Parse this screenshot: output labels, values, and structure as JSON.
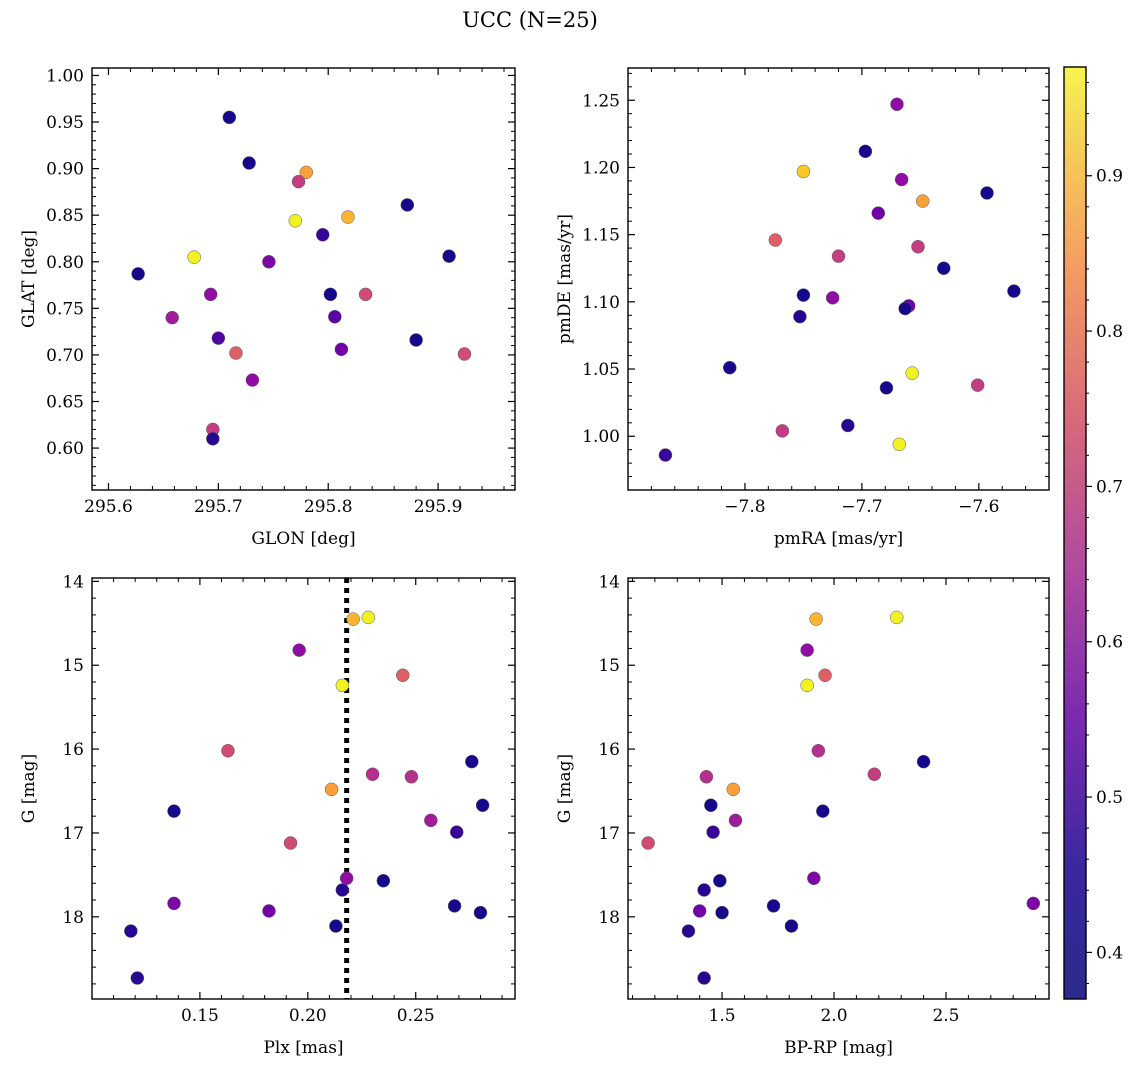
{
  "figure": {
    "title": "UCC (N=25)",
    "colorbar": {
      "colormap": "plasma",
      "range": [
        0.37,
        0.97
      ],
      "ticks": [
        0.4,
        0.5,
        0.6,
        0.7,
        0.8,
        0.9
      ],
      "tick_labels": [
        "0.4",
        "0.5",
        "0.6",
        "0.7",
        "0.8",
        "0.9"
      ]
    }
  },
  "chart_data": [
    {
      "type": "scatter",
      "id": "glon-glat",
      "xlabel": "GLON [deg]",
      "ylabel": "GLAT [deg]",
      "xlim": [
        295.585,
        295.97
      ],
      "ylim": [
        0.555,
        1.008
      ],
      "xticks": [
        295.6,
        295.7,
        295.8,
        295.9
      ],
      "xtick_labels": [
        "295.6",
        "295.7",
        "295.8",
        "295.9"
      ],
      "yticks": [
        0.6,
        0.65,
        0.7,
        0.75,
        0.8,
        0.85,
        0.9,
        0.95,
        1.0
      ],
      "ytick_labels": [
        "0.60",
        "0.65",
        "0.70",
        "0.75",
        "0.80",
        "0.85",
        "0.90",
        "0.95",
        "1.00"
      ],
      "y_inverted": false,
      "points": [
        {
          "x": 295.71,
          "y": 0.955,
          "c": 0.38
        },
        {
          "x": 295.728,
          "y": 0.906,
          "c": 0.38
        },
        {
          "x": 295.78,
          "y": 0.896,
          "c": 0.84
        },
        {
          "x": 295.773,
          "y": 0.886,
          "c": 0.65
        },
        {
          "x": 295.872,
          "y": 0.861,
          "c": 0.38
        },
        {
          "x": 295.818,
          "y": 0.848,
          "c": 0.87
        },
        {
          "x": 295.77,
          "y": 0.844,
          "c": 0.96
        },
        {
          "x": 295.795,
          "y": 0.829,
          "c": 0.42
        },
        {
          "x": 295.91,
          "y": 0.806,
          "c": 0.38
        },
        {
          "x": 295.678,
          "y": 0.805,
          "c": 0.96
        },
        {
          "x": 295.746,
          "y": 0.8,
          "c": 0.52
        },
        {
          "x": 295.627,
          "y": 0.787,
          "c": 0.38
        },
        {
          "x": 295.802,
          "y": 0.765,
          "c": 0.38
        },
        {
          "x": 295.834,
          "y": 0.765,
          "c": 0.68
        },
        {
          "x": 295.693,
          "y": 0.765,
          "c": 0.55
        },
        {
          "x": 295.806,
          "y": 0.741,
          "c": 0.47
        },
        {
          "x": 295.658,
          "y": 0.74,
          "c": 0.58
        },
        {
          "x": 295.7,
          "y": 0.718,
          "c": 0.45
        },
        {
          "x": 295.88,
          "y": 0.716,
          "c": 0.38
        },
        {
          "x": 295.812,
          "y": 0.706,
          "c": 0.5
        },
        {
          "x": 295.716,
          "y": 0.702,
          "c": 0.72
        },
        {
          "x": 295.924,
          "y": 0.701,
          "c": 0.68
        },
        {
          "x": 295.731,
          "y": 0.673,
          "c": 0.55
        },
        {
          "x": 295.695,
          "y": 0.62,
          "c": 0.65
        },
        {
          "x": 295.695,
          "y": 0.61,
          "c": 0.4
        }
      ]
    },
    {
      "type": "scatter",
      "id": "pmra-pmde",
      "xlabel": "pmRA [mas/yr]",
      "ylabel": "pmDE [mas/yr]",
      "xlim": [
        -7.9,
        -7.54
      ],
      "ylim": [
        0.96,
        1.274
      ],
      "xticks": [
        -7.8,
        -7.7,
        -7.6
      ],
      "xtick_labels": [
        "−7.8",
        "−7.7",
        "−7.6"
      ],
      "yticks": [
        1.0,
        1.05,
        1.1,
        1.15,
        1.2,
        1.25
      ],
      "ytick_labels": [
        "1.00",
        "1.05",
        "1.10",
        "1.15",
        "1.20",
        "1.25"
      ],
      "y_inverted": false,
      "points": [
        {
          "x": -7.67,
          "y": 1.247,
          "c": 0.55
        },
        {
          "x": -7.697,
          "y": 1.212,
          "c": 0.38
        },
        {
          "x": -7.75,
          "y": 1.197,
          "c": 0.9
        },
        {
          "x": -7.666,
          "y": 1.191,
          "c": 0.55
        },
        {
          "x": -7.593,
          "y": 1.181,
          "c": 0.38
        },
        {
          "x": -7.648,
          "y": 1.175,
          "c": 0.84
        },
        {
          "x": -7.686,
          "y": 1.166,
          "c": 0.5
        },
        {
          "x": -7.774,
          "y": 1.146,
          "c": 0.72
        },
        {
          "x": -7.652,
          "y": 1.141,
          "c": 0.65
        },
        {
          "x": -7.72,
          "y": 1.134,
          "c": 0.65
        },
        {
          "x": -7.63,
          "y": 1.125,
          "c": 0.38
        },
        {
          "x": -7.57,
          "y": 1.108,
          "c": 0.38
        },
        {
          "x": -7.75,
          "y": 1.105,
          "c": 0.38
        },
        {
          "x": -7.725,
          "y": 1.103,
          "c": 0.55
        },
        {
          "x": -7.66,
          "y": 1.097,
          "c": 0.5
        },
        {
          "x": -7.663,
          "y": 1.095,
          "c": 0.38
        },
        {
          "x": -7.753,
          "y": 1.089,
          "c": 0.4
        },
        {
          "x": -7.813,
          "y": 1.051,
          "c": 0.38
        },
        {
          "x": -7.657,
          "y": 1.047,
          "c": 0.96
        },
        {
          "x": -7.601,
          "y": 1.038,
          "c": 0.65
        },
        {
          "x": -7.679,
          "y": 1.036,
          "c": 0.38
        },
        {
          "x": -7.712,
          "y": 1.008,
          "c": 0.4
        },
        {
          "x": -7.768,
          "y": 1.004,
          "c": 0.65
        },
        {
          "x": -7.668,
          "y": 0.994,
          "c": 0.96
        },
        {
          "x": -7.868,
          "y": 0.986,
          "c": 0.42
        }
      ]
    },
    {
      "type": "scatter",
      "id": "plx-g",
      "xlabel": "Plx [mas]",
      "ylabel": "G [mag]",
      "xlim": [
        0.1,
        0.296
      ],
      "ylim": [
        18.98,
        13.96
      ],
      "xticks": [
        0.15,
        0.2,
        0.25
      ],
      "xtick_labels": [
        "0.15",
        "0.20",
        "0.25"
      ],
      "yticks": [
        14,
        15,
        16,
        17,
        18
      ],
      "ytick_labels": [
        "14",
        "15",
        "16",
        "17",
        "18"
      ],
      "y_inverted": true,
      "reference_line": {
        "axis": "x",
        "value": 0.218,
        "style": "dotted"
      },
      "points": [
        {
          "x": 0.228,
          "y": 14.43,
          "c": 0.96
        },
        {
          "x": 0.221,
          "y": 14.45,
          "c": 0.87
        },
        {
          "x": 0.196,
          "y": 14.82,
          "c": 0.55
        },
        {
          "x": 0.244,
          "y": 15.12,
          "c": 0.72
        },
        {
          "x": 0.216,
          "y": 15.24,
          "c": 0.96
        },
        {
          "x": 0.163,
          "y": 16.02,
          "c": 0.68
        },
        {
          "x": 0.276,
          "y": 16.15,
          "c": 0.38
        },
        {
          "x": 0.23,
          "y": 16.3,
          "c": 0.62
        },
        {
          "x": 0.248,
          "y": 16.33,
          "c": 0.62
        },
        {
          "x": 0.211,
          "y": 16.48,
          "c": 0.84
        },
        {
          "x": 0.281,
          "y": 16.67,
          "c": 0.38
        },
        {
          "x": 0.138,
          "y": 16.74,
          "c": 0.38
        },
        {
          "x": 0.257,
          "y": 16.85,
          "c": 0.58
        },
        {
          "x": 0.269,
          "y": 16.99,
          "c": 0.42
        },
        {
          "x": 0.192,
          "y": 17.12,
          "c": 0.68
        },
        {
          "x": 0.218,
          "y": 17.54,
          "c": 0.55
        },
        {
          "x": 0.235,
          "y": 17.57,
          "c": 0.38
        },
        {
          "x": 0.216,
          "y": 17.68,
          "c": 0.4
        },
        {
          "x": 0.138,
          "y": 17.84,
          "c": 0.52
        },
        {
          "x": 0.268,
          "y": 17.87,
          "c": 0.38
        },
        {
          "x": 0.182,
          "y": 17.93,
          "c": 0.5
        },
        {
          "x": 0.28,
          "y": 17.95,
          "c": 0.38
        },
        {
          "x": 0.213,
          "y": 18.11,
          "c": 0.38
        },
        {
          "x": 0.118,
          "y": 18.17,
          "c": 0.4
        },
        {
          "x": 0.121,
          "y": 18.73,
          "c": 0.4
        }
      ]
    },
    {
      "type": "scatter",
      "id": "bprp-g",
      "xlabel": "BP-RP [mag]",
      "ylabel": "G [mag]",
      "xlim": [
        1.08,
        2.96
      ],
      "ylim": [
        18.98,
        13.96
      ],
      "xticks": [
        1.5,
        2.0,
        2.5
      ],
      "xtick_labels": [
        "1.5",
        "2.0",
        "2.5"
      ],
      "yticks": [
        14,
        15,
        16,
        17,
        18
      ],
      "ytick_labels": [
        "14",
        "15",
        "16",
        "17",
        "18"
      ],
      "y_inverted": true,
      "points": [
        {
          "x": 2.28,
          "y": 14.43,
          "c": 0.96
        },
        {
          "x": 1.92,
          "y": 14.45,
          "c": 0.87
        },
        {
          "x": 1.88,
          "y": 14.82,
          "c": 0.55
        },
        {
          "x": 1.96,
          "y": 15.12,
          "c": 0.72
        },
        {
          "x": 1.88,
          "y": 15.24,
          "c": 0.96
        },
        {
          "x": 1.93,
          "y": 16.02,
          "c": 0.62
        },
        {
          "x": 2.4,
          "y": 16.15,
          "c": 0.38
        },
        {
          "x": 2.18,
          "y": 16.3,
          "c": 0.65
        },
        {
          "x": 1.43,
          "y": 16.33,
          "c": 0.62
        },
        {
          "x": 1.55,
          "y": 16.48,
          "c": 0.84
        },
        {
          "x": 1.45,
          "y": 16.67,
          "c": 0.38
        },
        {
          "x": 1.95,
          "y": 16.74,
          "c": 0.38
        },
        {
          "x": 1.56,
          "y": 16.85,
          "c": 0.58
        },
        {
          "x": 1.46,
          "y": 16.99,
          "c": 0.42
        },
        {
          "x": 1.17,
          "y": 17.12,
          "c": 0.68
        },
        {
          "x": 1.91,
          "y": 17.54,
          "c": 0.52
        },
        {
          "x": 1.49,
          "y": 17.57,
          "c": 0.38
        },
        {
          "x": 1.42,
          "y": 17.68,
          "c": 0.4
        },
        {
          "x": 2.89,
          "y": 17.84,
          "c": 0.52
        },
        {
          "x": 1.73,
          "y": 17.87,
          "c": 0.38
        },
        {
          "x": 1.4,
          "y": 17.93,
          "c": 0.5
        },
        {
          "x": 1.5,
          "y": 17.95,
          "c": 0.38
        },
        {
          "x": 1.81,
          "y": 18.11,
          "c": 0.38
        },
        {
          "x": 1.35,
          "y": 18.17,
          "c": 0.4
        },
        {
          "x": 1.42,
          "y": 18.73,
          "c": 0.4
        }
      ]
    }
  ]
}
